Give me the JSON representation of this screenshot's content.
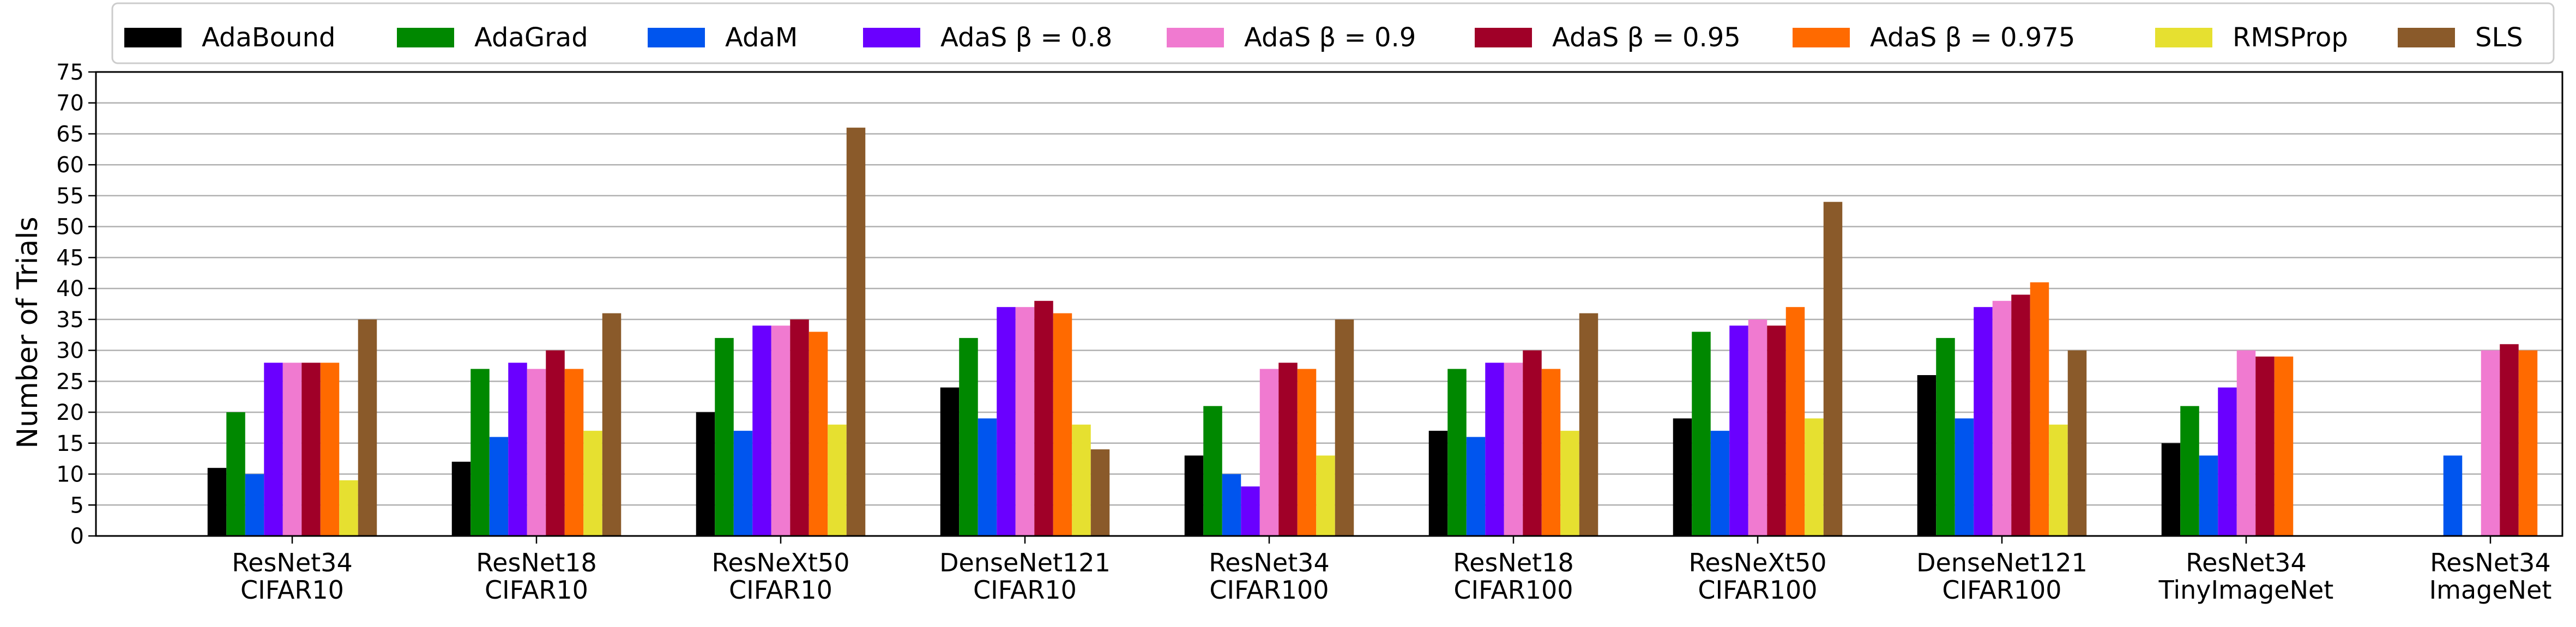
{
  "chart_data": {
    "type": "bar",
    "ylabel": "Number of Trials",
    "xlabel": "",
    "ylim": [
      0,
      75
    ],
    "yticks": [
      0,
      5,
      10,
      15,
      20,
      25,
      30,
      35,
      40,
      45,
      50,
      55,
      60,
      65,
      70,
      75
    ],
    "grid": "horizontal",
    "legend_position": "top",
    "categories": [
      [
        "ResNet34",
        "CIFAR10"
      ],
      [
        "ResNet18",
        "CIFAR10"
      ],
      [
        "ResNeXt50",
        "CIFAR10"
      ],
      [
        "DenseNet121",
        "CIFAR10"
      ],
      [
        "ResNet34",
        "CIFAR100"
      ],
      [
        "ResNet18",
        "CIFAR100"
      ],
      [
        "ResNeXt50",
        "CIFAR100"
      ],
      [
        "DenseNet121",
        "CIFAR100"
      ],
      [
        "ResNet34",
        "TinyImageNet"
      ],
      [
        "ResNet34",
        "ImageNet"
      ]
    ],
    "series": [
      {
        "name": "AdaBound",
        "color": "#000000",
        "values": [
          11,
          12,
          20,
          24,
          13,
          17,
          19,
          26,
          15,
          null
        ]
      },
      {
        "name": "AdaGrad",
        "color": "#008800",
        "values": [
          20,
          27,
          32,
          32,
          21,
          27,
          33,
          32,
          21,
          null
        ]
      },
      {
        "name": "AdaM",
        "color": "#0055ee",
        "values": [
          10,
          16,
          17,
          19,
          10,
          16,
          17,
          19,
          13,
          13
        ]
      },
      {
        "name": "AdaS β = 0.8",
        "color": "#6a00ff",
        "values": [
          28,
          28,
          34,
          37,
          8,
          28,
          34,
          37,
          24,
          null
        ]
      },
      {
        "name": "AdaS β = 0.9",
        "color": "#f07ad0",
        "values": [
          28,
          27,
          34,
          37,
          27,
          28,
          35,
          38,
          30,
          30
        ]
      },
      {
        "name": "AdaS β = 0.95",
        "color": "#a00028",
        "values": [
          28,
          30,
          35,
          38,
          28,
          30,
          34,
          39,
          29,
          31
        ]
      },
      {
        "name": "AdaS β = 0.975",
        "color": "#ff6a00",
        "values": [
          28,
          27,
          33,
          36,
          27,
          27,
          37,
          41,
          29,
          30
        ]
      },
      {
        "name": "RMSProp",
        "color": "#e6e030",
        "values": [
          9,
          17,
          18,
          18,
          13,
          17,
          19,
          18,
          null,
          null
        ]
      },
      {
        "name": "SLS",
        "color": "#8a5a2a",
        "values": [
          35,
          36,
          66,
          14,
          35,
          36,
          54,
          30,
          null,
          null
        ]
      }
    ]
  }
}
